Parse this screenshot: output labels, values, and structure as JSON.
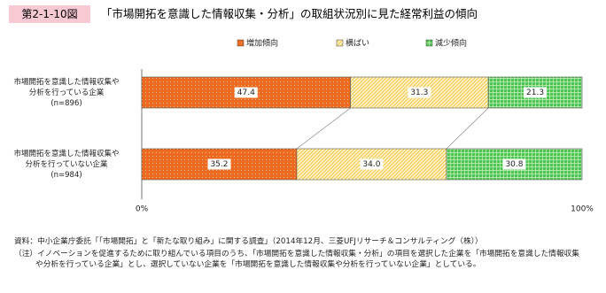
{
  "header": {
    "figure_number": "第2-1-10図",
    "title": "「市場開拓を意識した情報収集・分析」の取組状況別に見た経常利益の傾向"
  },
  "chart_data": {
    "type": "stacked-bar-horizontal",
    "categories": [
      "市場開拓を意識した情報収集や\n分析を行っている企業\n(n=896)",
      "市場開拓を意識した情報収集や\n分析を行っていない企業\n(n=984)"
    ],
    "series": [
      {
        "name": "増加傾向",
        "color": "#ee6a1f",
        "values": [
          47.4,
          35.2
        ],
        "value_labels": [
          "47.4",
          "35.2"
        ]
      },
      {
        "name": "横ばい",
        "color": "#f3c73d",
        "values": [
          31.3,
          34.0
        ],
        "value_labels": [
          "31.3",
          "34.0"
        ]
      },
      {
        "name": "減少傾向",
        "color": "#4fc64f",
        "values": [
          21.3,
          30.8
        ],
        "value_labels": [
          "21.3",
          "30.8"
        ]
      }
    ],
    "xlim": [
      0,
      100
    ],
    "xticks": [
      {
        "value": 0,
        "label": "0%"
      },
      {
        "value": 100,
        "label": "100%"
      }
    ],
    "legend": "top"
  },
  "notes": [
    "資料：中小企業庁委託「「市場開拓」と「新たな取り組み」に関する調査」（2014年12月、三菱UFJリサーチ＆コンサルティング（株））",
    "（注）イノベーションを促進するために取り組んでいる項目のうち、「市場開拓を意識した情報収集・分析」の項目を選択した企業を「市場開拓を意識した情報収集や分析を行っている企業」とし、選択していない企業を「市場開拓を意識した情報収集や分析を行っていない企業」としている。"
  ]
}
